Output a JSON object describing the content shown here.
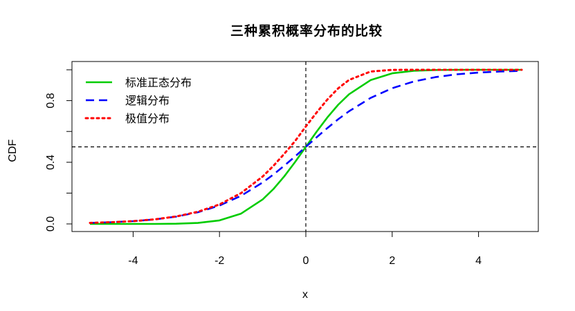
{
  "chart_data": {
    "type": "line",
    "title": "三种累积概率分布的比较",
    "xlabel": "x",
    "ylabel": "CDF",
    "xlim": [
      -5,
      5
    ],
    "ylim": [
      0,
      1
    ],
    "xticks": [
      -4,
      -2,
      0,
      2,
      4
    ],
    "xtick_labels": [
      "-4",
      "-2",
      "0",
      "2",
      "4"
    ],
    "yticks": [
      0.0,
      0.4,
      0.8
    ],
    "ytick_labels": [
      "0.0",
      "0.4",
      "0.8"
    ],
    "grid": false,
    "legend_position": "top-left",
    "reference_lines": [
      {
        "orientation": "horizontal",
        "value": 0.5,
        "style": "dashed",
        "color": "#000000"
      },
      {
        "orientation": "vertical",
        "value": 0,
        "style": "dashed",
        "color": "#000000"
      }
    ],
    "series": [
      {
        "name": "标准正态分布",
        "color": "#00cc00",
        "line_style": "solid",
        "x": [
          -5,
          -4.5,
          -4,
          -3.5,
          -3,
          -2.5,
          -2,
          -1.5,
          -1,
          -0.75,
          -0.5,
          -0.25,
          0,
          0.25,
          0.5,
          0.75,
          1,
          1.5,
          2,
          2.5,
          3,
          3.5,
          4,
          4.5,
          5
        ],
        "y": [
          0.0,
          0.0,
          0.0,
          0.0002,
          0.0013,
          0.0062,
          0.0228,
          0.0668,
          0.1587,
          0.2266,
          0.3085,
          0.4013,
          0.5,
          0.5987,
          0.6915,
          0.7734,
          0.8413,
          0.9332,
          0.9772,
          0.9938,
          0.9987,
          0.9998,
          1.0,
          1.0,
          1.0
        ]
      },
      {
        "name": "逻辑分布",
        "color": "#0000ff",
        "line_style": "dashed",
        "x": [
          -5,
          -4.5,
          -4,
          -3.5,
          -3,
          -2.5,
          -2,
          -1.5,
          -1,
          -0.75,
          -0.5,
          -0.25,
          0,
          0.25,
          0.5,
          0.75,
          1,
          1.5,
          2,
          2.5,
          3,
          3.5,
          4,
          4.5,
          5
        ],
        "y": [
          0.0067,
          0.011,
          0.018,
          0.0293,
          0.0474,
          0.0759,
          0.1192,
          0.1824,
          0.2689,
          0.3208,
          0.3775,
          0.4378,
          0.5,
          0.5622,
          0.6225,
          0.6792,
          0.7311,
          0.8176,
          0.8808,
          0.9241,
          0.9526,
          0.9707,
          0.982,
          0.989,
          0.9933
        ]
      },
      {
        "name": "极值分布",
        "color": "#ff0000",
        "line_style": "dotted",
        "x": [
          -5,
          -4.5,
          -4,
          -3.5,
          -3,
          -2.5,
          -2,
          -1.5,
          -1,
          -0.75,
          -0.5,
          -0.25,
          0,
          0.25,
          0.5,
          0.75,
          1,
          1.5,
          2,
          2.5,
          3,
          3.5,
          4,
          4.5,
          5
        ],
        "y": [
          0.0067,
          0.011,
          0.0181,
          0.0297,
          0.0486,
          0.0788,
          0.1266,
          0.1999,
          0.3078,
          0.377,
          0.4548,
          0.5372,
          0.6321,
          0.7229,
          0.8077,
          0.8797,
          0.934,
          0.9888,
          0.9994,
          1.0,
          1.0,
          1.0,
          1.0,
          1.0,
          1.0
        ]
      }
    ]
  }
}
